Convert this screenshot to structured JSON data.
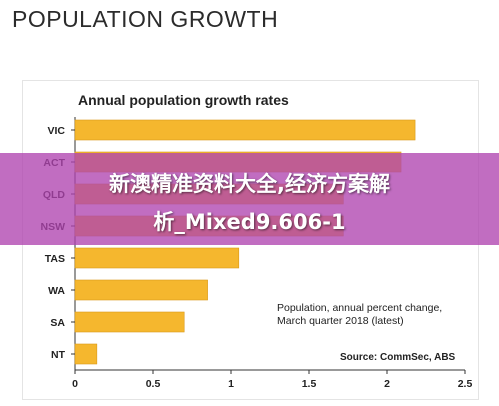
{
  "page": {
    "title": "POPULATION GROWTH"
  },
  "banner": {
    "line1": "新澳精准资料大全,经济方案解",
    "line2": "析_Mixed9.606-1"
  },
  "chart_data": {
    "type": "bar",
    "orientation": "horizontal",
    "title": "Annual population growth rates",
    "categories": [
      "VIC",
      "ACT",
      "QLD",
      "NSW",
      "TAS",
      "WA",
      "SA",
      "NT"
    ],
    "values": [
      2.18,
      2.09,
      1.72,
      1.72,
      1.05,
      0.85,
      0.7,
      0.14
    ],
    "xlim": [
      0,
      2.5
    ],
    "xticks": [
      "0",
      "0.5",
      "1",
      "1.5",
      "2",
      "2.5"
    ],
    "xtick_values": [
      0,
      0.5,
      1,
      1.5,
      2,
      2.5
    ],
    "bar_color": "#f5b72e",
    "grid": false,
    "note": [
      "Population, annual percent change,",
      "March quarter 2018 (latest)"
    ],
    "source": "Source: CommSec, ABS"
  }
}
